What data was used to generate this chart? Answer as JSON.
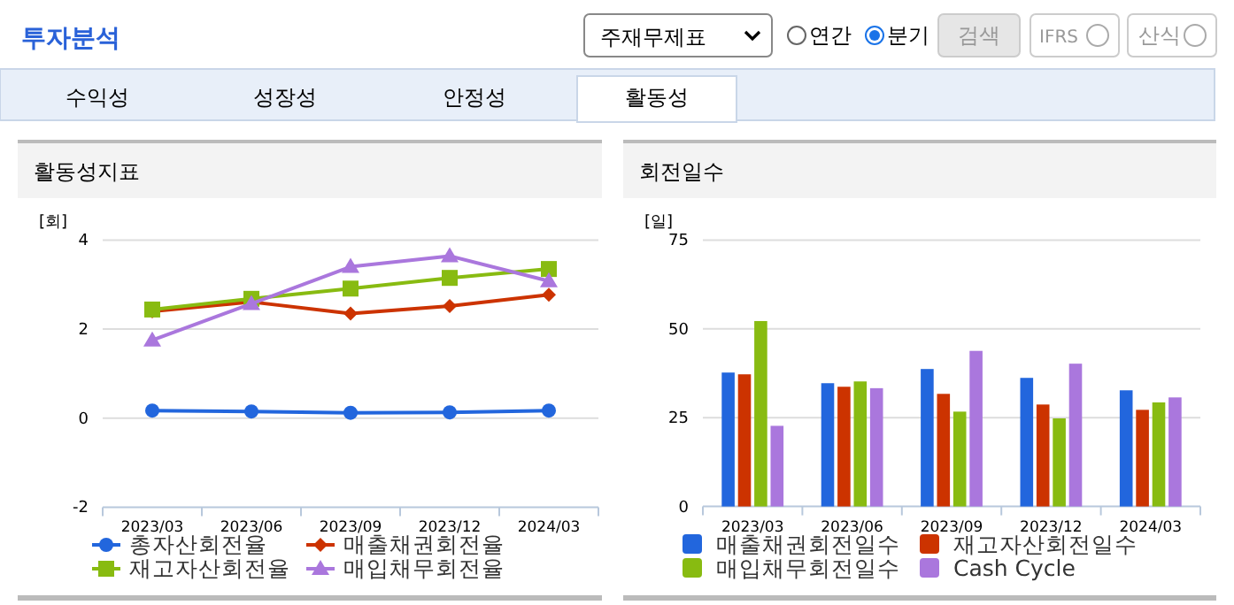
{
  "chart_data": [
    {
      "type": "other",
      "title": "투자분석",
      "annotations": [
        "주재무제표",
        "연간",
        "분기",
        "검색",
        "IFRS",
        "산식",
        "수익성",
        "성장성",
        "안정성",
        "활동성"
      ]
    },
    {
      "type": "line",
      "title": "활동성지표",
      "ylabel": "[회]",
      "categories": [
        "2023/03",
        "2023/06",
        "2023/09",
        "2023/12",
        "2024/03"
      ],
      "ylim": [
        -2,
        4
      ],
      "yticks": [
        -2,
        0,
        2,
        4
      ],
      "grid": "y",
      "legend": "bottom",
      "series": [
        {
          "name": "총자산회전율",
          "color": "#2266dd",
          "marker": "circle",
          "values": [
            0.17,
            0.15,
            0.12,
            0.13,
            0.17
          ]
        },
        {
          "name": "매출채권회전율",
          "color": "#cc3300",
          "marker": "diamond",
          "values": [
            2.4,
            2.61,
            2.35,
            2.52,
            2.77
          ]
        },
        {
          "name": "재고자산회전율",
          "color": "#88bb11",
          "marker": "square",
          "values": [
            2.44,
            2.68,
            2.91,
            3.15,
            3.35
          ]
        },
        {
          "name": "매입채무회전율",
          "color": "#aa77dd",
          "marker": "triangle",
          "values": [
            1.75,
            2.57,
            3.4,
            3.64,
            3.08
          ]
        }
      ]
    },
    {
      "type": "bar",
      "title": "회전일수",
      "ylabel": "[일]",
      "categories": [
        "2023/03",
        "2023/06",
        "2023/09",
        "2023/12",
        "2024/03"
      ],
      "ylim": [
        0,
        75
      ],
      "yticks": [
        0,
        25,
        50,
        75
      ],
      "grid": "y",
      "legend": "bottom",
      "series": [
        {
          "name": "매출채권회전일수",
          "color": "#2266dd",
          "values": [
            37.7,
            34.7,
            38.7,
            36.2,
            32.7
          ]
        },
        {
          "name": "재고자산회전일수",
          "color": "#cc3300",
          "values": [
            37.2,
            33.7,
            31.7,
            28.7,
            27.2
          ]
        },
        {
          "name": "매입채무회전일수",
          "color": "#88bb11",
          "values": [
            52.2,
            35.2,
            26.7,
            24.8,
            29.3
          ]
        },
        {
          "name": "Cash Cycle",
          "color": "#aa77dd",
          "values": [
            22.7,
            33.3,
            43.8,
            40.2,
            30.7
          ]
        }
      ]
    }
  ]
}
